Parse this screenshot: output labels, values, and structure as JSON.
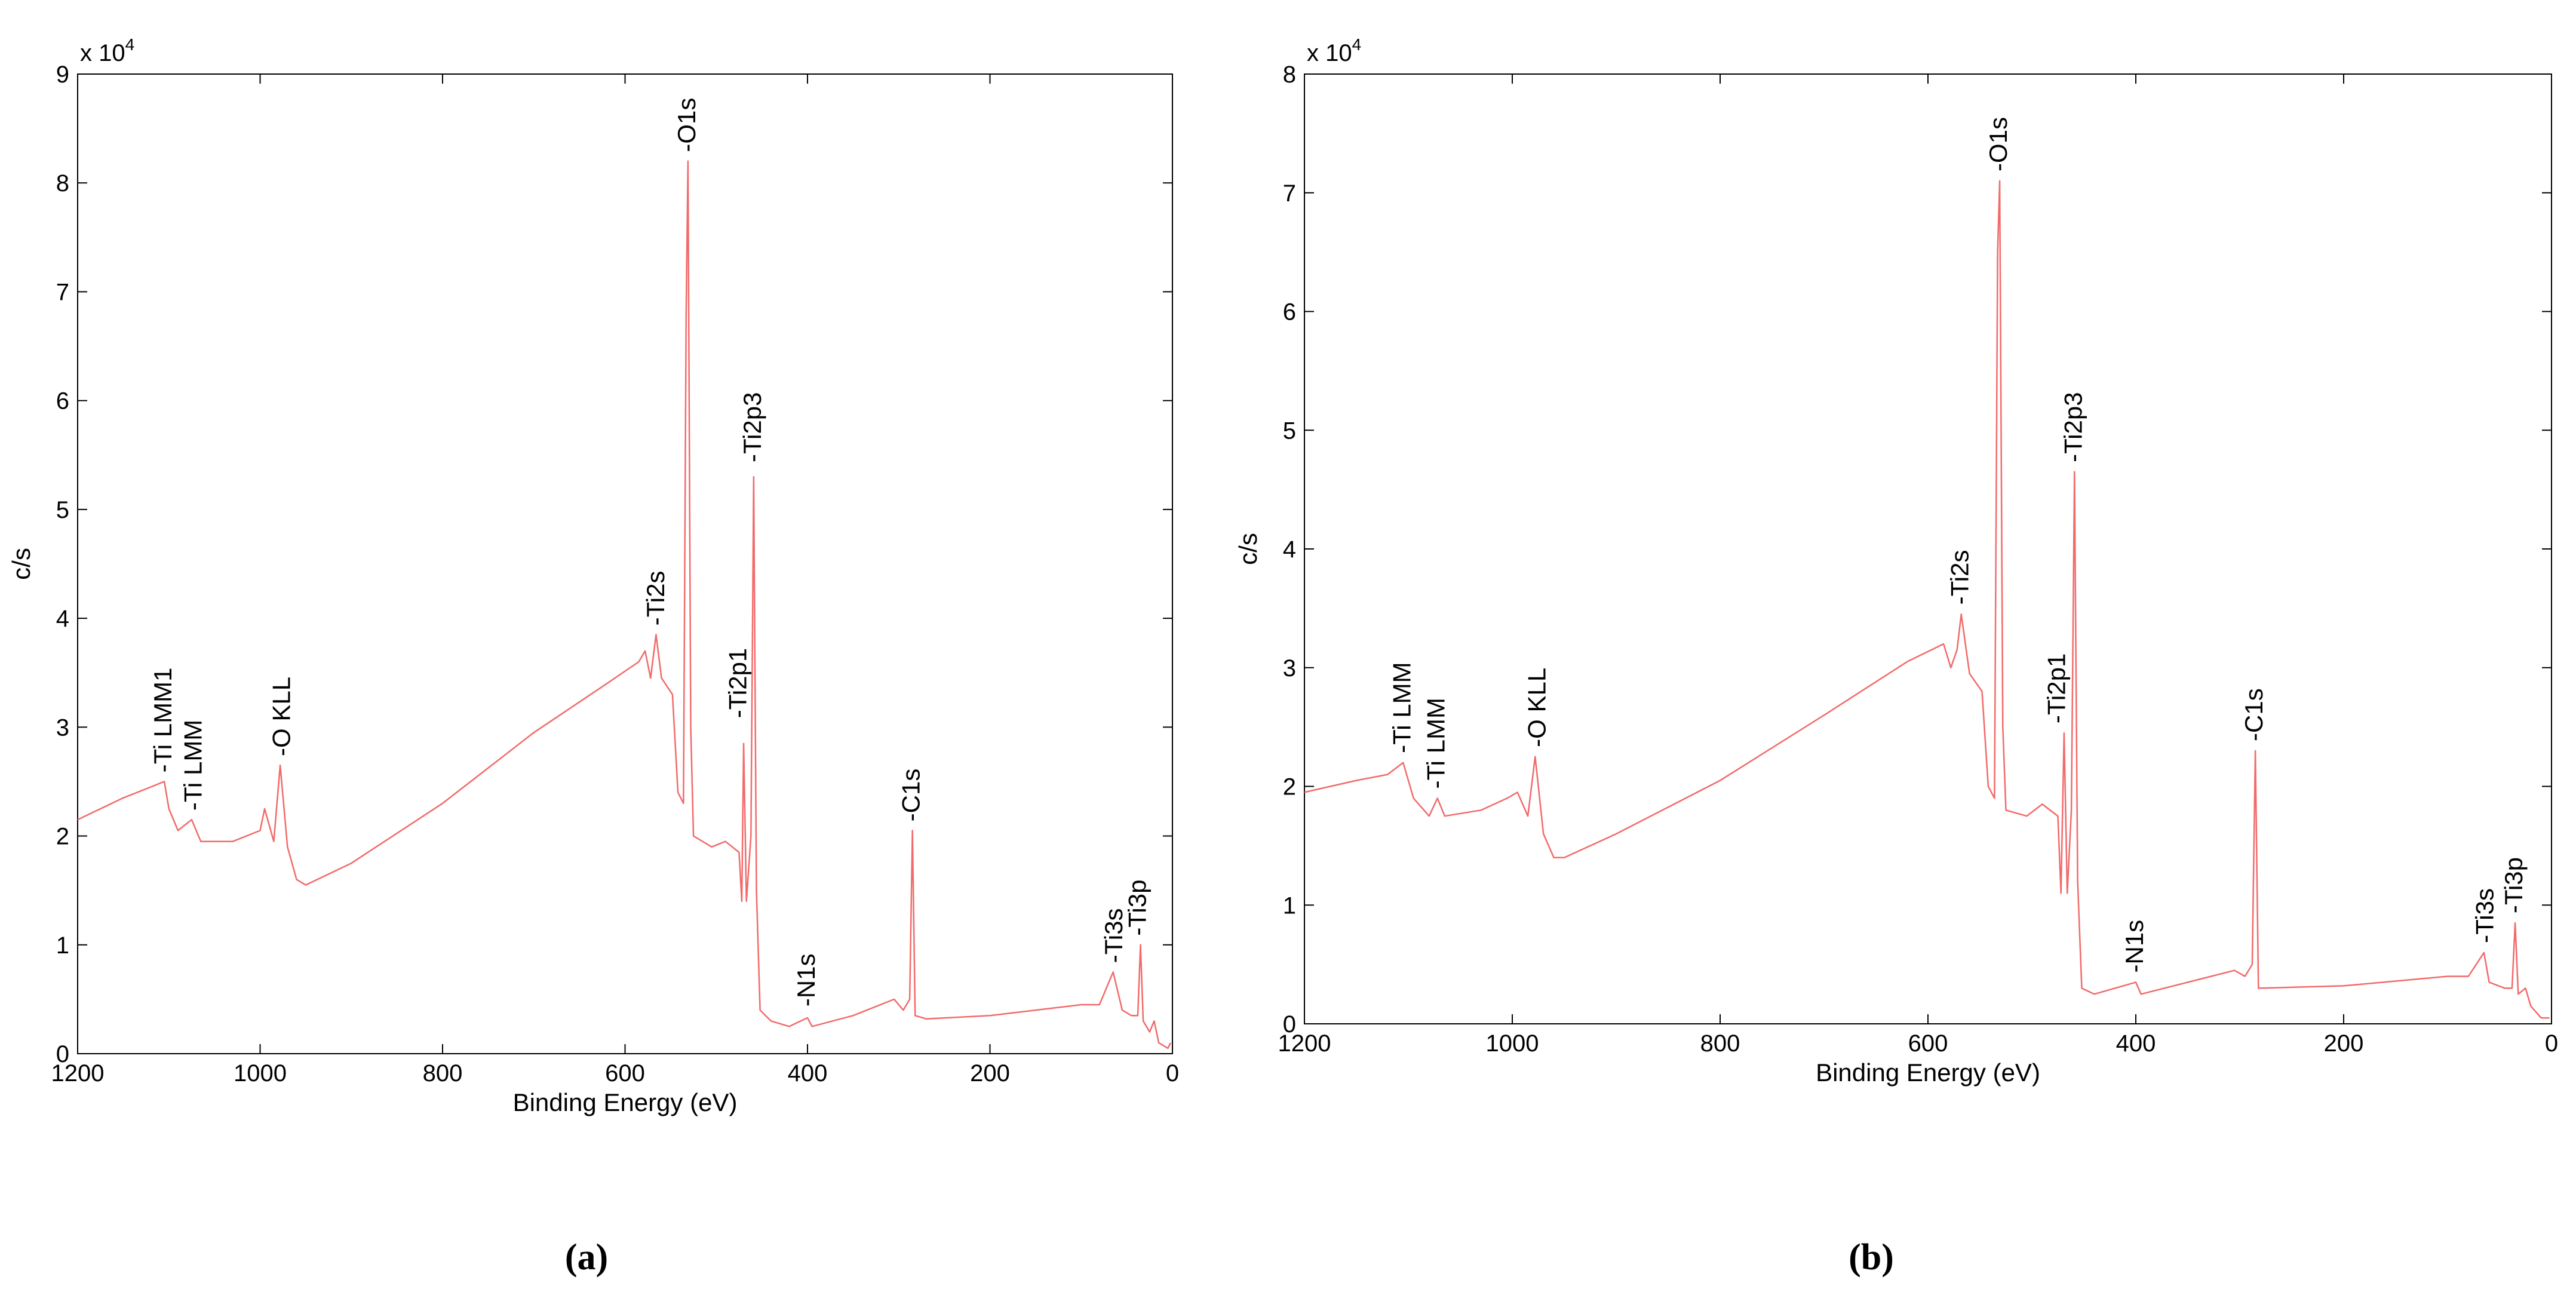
{
  "chart_data": [
    {
      "type": "line",
      "caption": "(a)",
      "xlabel": "Binding Energy (eV)",
      "ylabel": "c/s",
      "y_scale_base": "x 10",
      "y_scale_exponent": "4",
      "xlim": [
        1200,
        0
      ],
      "xticks": [
        1200,
        1000,
        800,
        600,
        400,
        200,
        0
      ],
      "ylim": [
        0,
        9
      ],
      "yticks": [
        0,
        1,
        2,
        3,
        4,
        5,
        6,
        7,
        8,
        9
      ],
      "color": "#f26a6a",
      "x": [
        1200,
        1150,
        1120,
        1105,
        1100,
        1090,
        1075,
        1065,
        1030,
        1000,
        995,
        985,
        978,
        970,
        960,
        950,
        900,
        800,
        700,
        620,
        585,
        578,
        572,
        566,
        560,
        548,
        542,
        536,
        533,
        531,
        528,
        525,
        505,
        490,
        475,
        472,
        470,
        467,
        462,
        459,
        456,
        452,
        440,
        420,
        400,
        395,
        350,
        305,
        295,
        288,
        285,
        282,
        270,
        200,
        100,
        80,
        65,
        55,
        45,
        38,
        35,
        32,
        25,
        20,
        15,
        5,
        2
      ],
      "values": [
        2.15,
        2.35,
        2.45,
        2.5,
        2.25,
        2.05,
        2.15,
        1.95,
        1.95,
        2.05,
        2.25,
        1.95,
        2.65,
        1.9,
        1.6,
        1.55,
        1.75,
        2.3,
        2.95,
        3.4,
        3.6,
        3.7,
        3.45,
        3.85,
        3.45,
        3.3,
        2.4,
        2.3,
        6.8,
        8.2,
        3.0,
        2.0,
        1.9,
        1.95,
        1.85,
        1.4,
        2.85,
        1.4,
        2.0,
        5.3,
        1.5,
        0.4,
        0.3,
        0.25,
        0.33,
        0.25,
        0.35,
        0.5,
        0.4,
        0.5,
        2.05,
        0.35,
        0.32,
        0.35,
        0.45,
        0.45,
        0.75,
        0.4,
        0.35,
        0.35,
        1.0,
        0.3,
        0.2,
        0.3,
        0.1,
        0.05,
        0.1
      ],
      "annotations": [
        {
          "text": "-Ti LMM1",
          "x": 1105,
          "y": 2.55
        },
        {
          "text": "-Ti LMM",
          "x": 1072,
          "y": 2.2
        },
        {
          "text": "-O KLL",
          "x": 975,
          "y": 2.7
        },
        {
          "text": "-Ti2s",
          "x": 565,
          "y": 3.9
        },
        {
          "text": "-O1s",
          "x": 531,
          "y": 8.25
        },
        {
          "text": "-Ti2p3",
          "x": 459,
          "y": 5.4
        },
        {
          "text": "-Ti2p1",
          "x": 475,
          "y": 3.05
        },
        {
          "text": "-N1s",
          "x": 400,
          "y": 0.4
        },
        {
          "text": "-C1s",
          "x": 285,
          "y": 2.1
        },
        {
          "text": "-Ti3s",
          "x": 63,
          "y": 0.8
        },
        {
          "text": "-Ti3p",
          "x": 37,
          "y": 1.05
        }
      ]
    },
    {
      "type": "line",
      "caption": "(b)",
      "xlabel": "Binding Energy (eV)",
      "ylabel": "c/s",
      "y_scale_base": "x 10",
      "y_scale_exponent": "4",
      "xlim": [
        1200,
        0
      ],
      "xticks": [
        1200,
        1000,
        800,
        600,
        400,
        200,
        0
      ],
      "ylim": [
        0,
        8
      ],
      "yticks": [
        0,
        1,
        2,
        3,
        4,
        5,
        6,
        7,
        8
      ],
      "color": "#f26a6a",
      "x": [
        1200,
        1150,
        1120,
        1105,
        1095,
        1080,
        1072,
        1065,
        1030,
        1005,
        995,
        985,
        978,
        970,
        960,
        950,
        900,
        800,
        700,
        620,
        585,
        578,
        572,
        568,
        560,
        548,
        542,
        536,
        533,
        531,
        528,
        525,
        505,
        490,
        475,
        472,
        469,
        466,
        462,
        459,
        456,
        452,
        440,
        400,
        395,
        350,
        305,
        295,
        288,
        285,
        282,
        200,
        100,
        80,
        65,
        60,
        45,
        38,
        35,
        32,
        25,
        20,
        10,
        2
      ],
      "values": [
        1.95,
        2.05,
        2.1,
        2.2,
        1.9,
        1.75,
        1.9,
        1.75,
        1.8,
        1.9,
        1.95,
        1.75,
        2.25,
        1.6,
        1.4,
        1.4,
        1.6,
        2.05,
        2.6,
        3.05,
        3.2,
        3.0,
        3.15,
        3.45,
        2.95,
        2.8,
        2.0,
        1.9,
        6.5,
        7.1,
        2.5,
        1.8,
        1.75,
        1.85,
        1.75,
        1.1,
        2.45,
        1.1,
        1.8,
        4.65,
        1.2,
        0.3,
        0.25,
        0.35,
        0.25,
        0.35,
        0.45,
        0.4,
        0.5,
        2.3,
        0.3,
        0.32,
        0.4,
        0.4,
        0.6,
        0.35,
        0.3,
        0.3,
        0.85,
        0.25,
        0.3,
        0.15,
        0.05,
        0.05
      ],
      "annotations": [
        {
          "text": "-Ti LMM",
          "x": 1105,
          "y": 2.25
        },
        {
          "text": "-Ti LMM",
          "x": 1072,
          "y": 1.95
        },
        {
          "text": "-O KLL",
          "x": 975,
          "y": 2.3
        },
        {
          "text": "-Ti2s",
          "x": 568,
          "y": 3.5
        },
        {
          "text": "-O1s",
          "x": 531,
          "y": 7.15
        },
        {
          "text": "-Ti2p3",
          "x": 459,
          "y": 4.7
        },
        {
          "text": "-Ti2p1",
          "x": 475,
          "y": 2.5
        },
        {
          "text": "-N1s",
          "x": 400,
          "y": 0.4
        },
        {
          "text": "-C1s",
          "x": 285,
          "y": 2.35
        },
        {
          "text": "-Ti3s",
          "x": 63,
          "y": 0.65
        },
        {
          "text": "-Ti3p",
          "x": 35,
          "y": 0.9
        }
      ]
    }
  ]
}
